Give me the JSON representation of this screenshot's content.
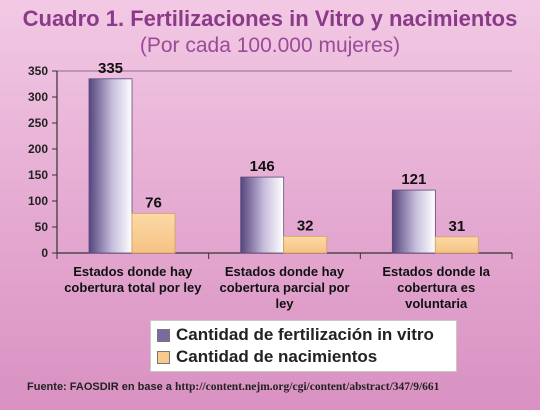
{
  "title": "Cuadro 1. Fertilizaciones in Vitro y nacimientos",
  "subtitle": "(Por cada 100.000 mujeres)",
  "footer": {
    "label": "Fuente: FAOSDIR en base a",
    "url": "http://content.nejm.org/cgi/content/abstract/347/9/661"
  },
  "chart_data": {
    "type": "bar",
    "categories": [
      [
        "Estados donde hay",
        "cobertura total por ley"
      ],
      [
        "Estados donde hay",
        "cobertura parcial por",
        "ley"
      ],
      [
        "Estados donde la",
        "cobertura es",
        "voluntaria"
      ]
    ],
    "series": [
      {
        "name": "Cantidad de fertilización in vitro",
        "values": [
          335,
          146,
          121
        ],
        "color": "#7a6aa0"
      },
      {
        "name": "Cantidad de nacimientos",
        "values": [
          76,
          32,
          31
        ],
        "color": "#f7c98a"
      }
    ],
    "ylim": [
      0,
      350
    ],
    "yticks": [
      0,
      50,
      100,
      150,
      200,
      250,
      300,
      350
    ],
    "data_labels": true,
    "legend_position": "bottom",
    "grid": false
  }
}
